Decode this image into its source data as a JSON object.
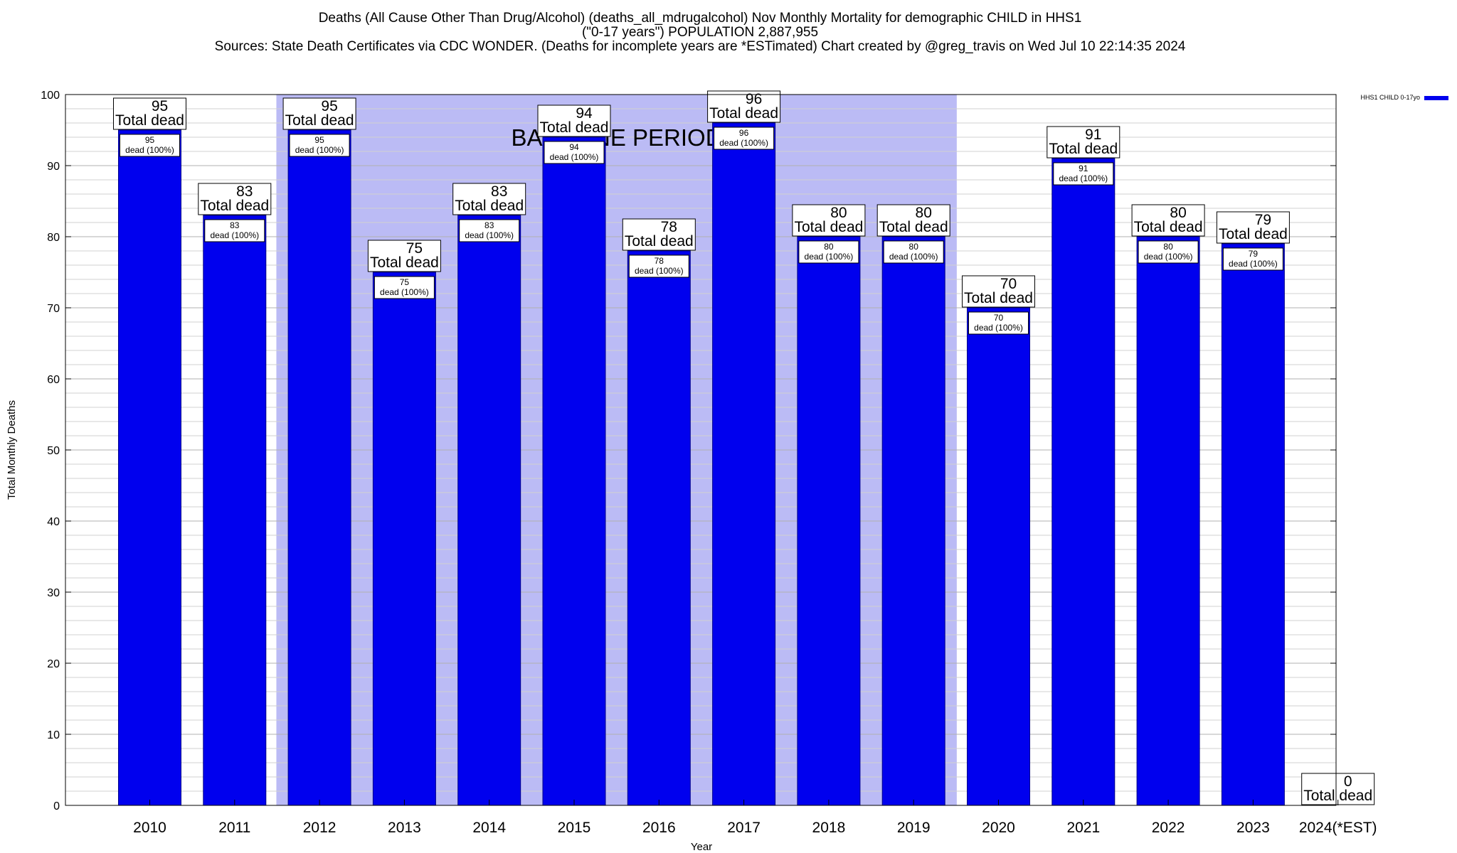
{
  "chart_data": {
    "type": "bar",
    "title_lines": [
      "Deaths (All Cause Other Than Drug/Alcohol) (deaths_all_mdrugalcohol) Nov Monthly Mortality for demographic CHILD in HHS1",
      "(\"0-17 years\") POPULATION 2,887,955",
      "Sources: State Death Certificates via CDC WONDER. (Deaths for incomplete years are *ESTimated)                Chart created by @greg_travis on Wed Jul 10 22:14:35 2024"
    ],
    "xlabel": "Year",
    "ylabel": "Total Monthly Deaths",
    "ylim": [
      0,
      100
    ],
    "yticks": [
      0,
      10,
      20,
      30,
      40,
      50,
      60,
      70,
      80,
      90,
      100
    ],
    "categories": [
      "2010",
      "2011",
      "2012",
      "2013",
      "2014",
      "2015",
      "2016",
      "2017",
      "2018",
      "2019",
      "2020",
      "2021",
      "2022",
      "2023",
      "2024(*EST)"
    ],
    "series": [
      {
        "name": "HHS1 CHILD 0-17yo",
        "color": "#0000ee",
        "values": [
          95,
          83,
          95,
          75,
          83,
          94,
          78,
          96,
          80,
          80,
          70,
          91,
          80,
          79,
          0
        ]
      }
    ],
    "total_labels": [
      "95",
      "83",
      "95",
      "75",
      "83",
      "94",
      "78",
      "96",
      "80",
      "80",
      "70",
      "91",
      "80",
      "79",
      "0"
    ],
    "total_suffix": "Total dead",
    "inner_labels": [
      "95",
      "83",
      "95",
      "75",
      "83",
      "94",
      "78",
      "96",
      "80",
      "80",
      "70",
      "91",
      "80",
      "79",
      ""
    ],
    "inner_suffix": "dead (100%)",
    "baseline": {
      "label": "BASELINE PERIOD",
      "start_category": "2012",
      "end_category": "2019",
      "color": "#bbbbf5"
    },
    "grid": true,
    "legend": "top-right",
    "bar_color": "#0000ee",
    "bar_outline_color": "#00008b"
  }
}
